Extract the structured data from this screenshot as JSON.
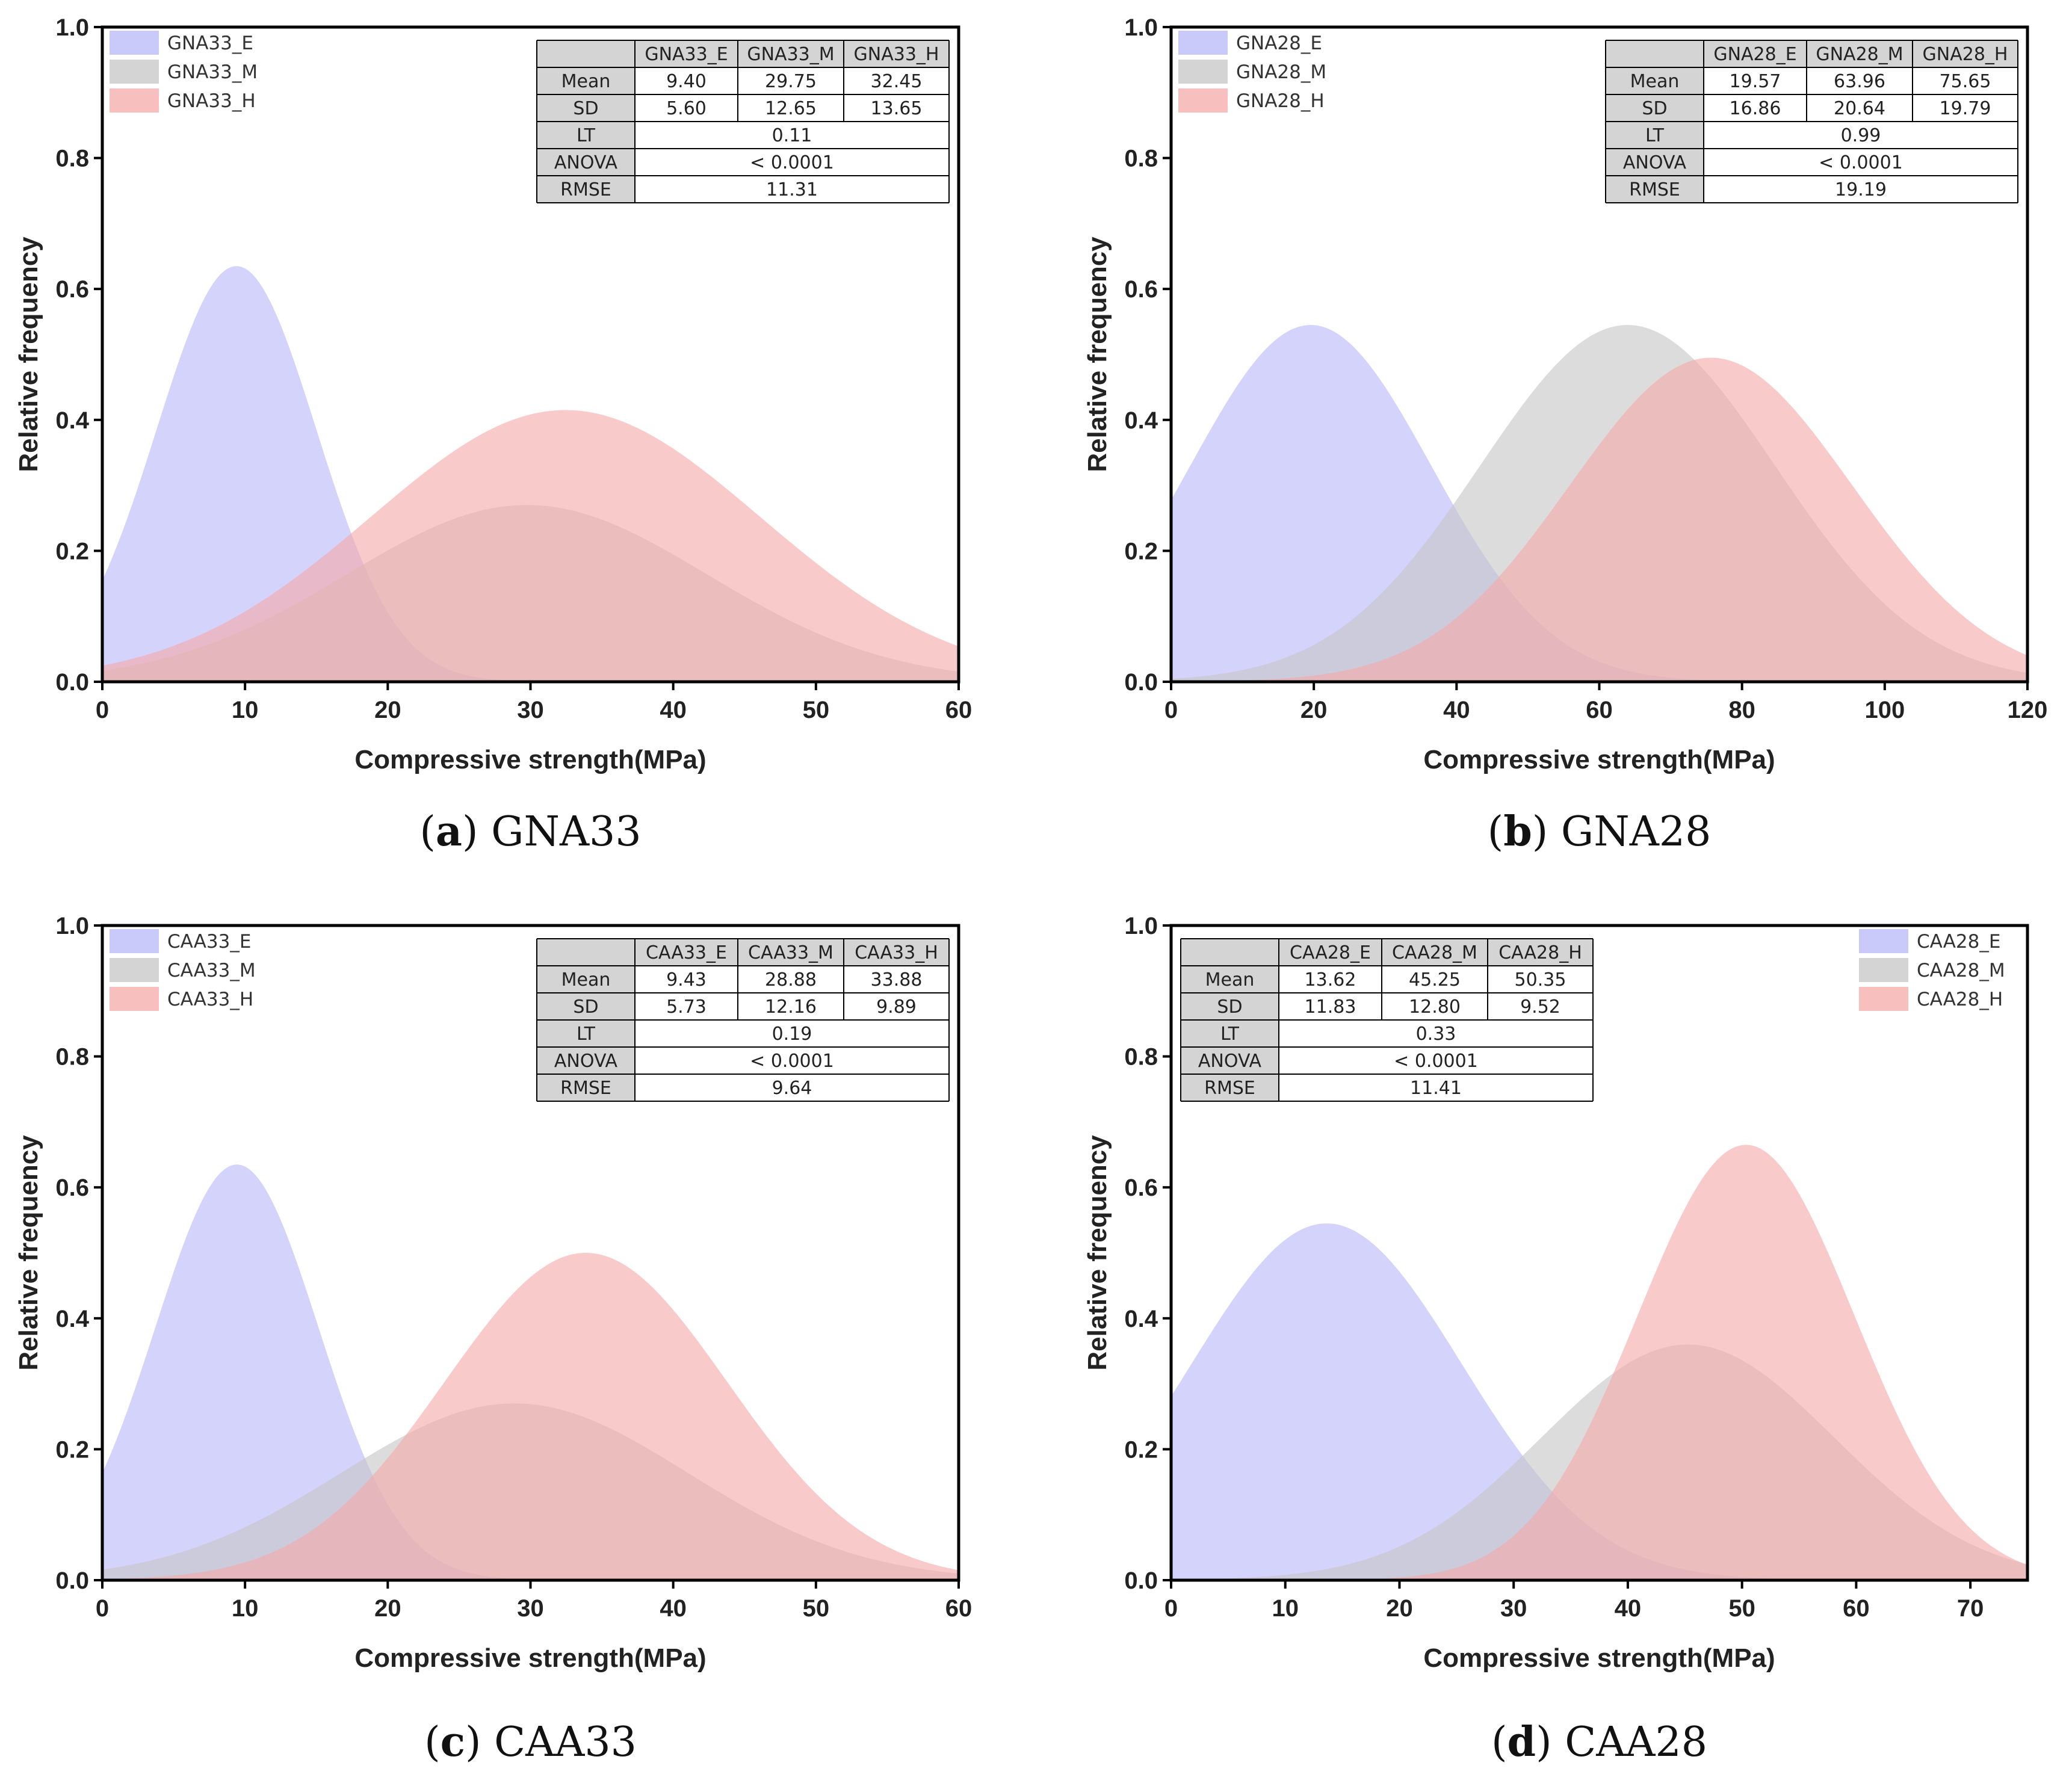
{
  "colors": {
    "E": "#b8b8f8",
    "M": "#c6c6c6",
    "H": "#f6aaaa"
  },
  "chart_data": [
    {
      "type": "area",
      "caption": {
        "letter": "a",
        "name": "GNA33"
      },
      "xlabel": "Compressive strength(MPa)",
      "ylabel": "Relative frequency",
      "xlim": [
        0,
        60
      ],
      "ylim": [
        0,
        1.0
      ],
      "xticks": [
        "0",
        "10",
        "20",
        "30",
        "40",
        "50",
        "60"
      ],
      "yticks": [
        "0.0",
        "0.2",
        "0.4",
        "0.6",
        "0.8",
        "1.0"
      ],
      "legend_position": "top-left",
      "table_position": "top-right",
      "series": [
        {
          "name": "GNA33_E",
          "key": "E",
          "mean": 9.4,
          "sd": 5.6,
          "peak": 0.635
        },
        {
          "name": "GNA33_M",
          "key": "M",
          "mean": 29.75,
          "sd": 12.65,
          "peak": 0.27
        },
        {
          "name": "GNA33_H",
          "key": "H",
          "mean": 32.45,
          "sd": 13.65,
          "peak": 0.415
        }
      ],
      "table": {
        "headers": [
          "GNA33_E",
          "GNA33_M",
          "GNA33_H"
        ],
        "mean": [
          "9.40",
          "29.75",
          "32.45"
        ],
        "sd": [
          "5.60",
          "12.65",
          "13.65"
        ],
        "row_labels": [
          "Mean",
          "SD",
          "LT",
          "ANOVA",
          "RMSE"
        ],
        "lt": "0.11",
        "anova": "< 0.0001",
        "rmse": "11.31"
      }
    },
    {
      "type": "area",
      "caption": {
        "letter": "b",
        "name": "GNA28"
      },
      "xlabel": "Compressive strength(MPa)",
      "ylabel": "Relative frequency",
      "xlim": [
        0,
        120
      ],
      "ylim": [
        0,
        1.0
      ],
      "xticks": [
        "0",
        "20",
        "40",
        "60",
        "80",
        "100",
        "120"
      ],
      "yticks": [
        "0.0",
        "0.2",
        "0.4",
        "0.6",
        "0.8",
        "1.0"
      ],
      "legend_position": "top-left",
      "table_position": "top-right",
      "series": [
        {
          "name": "GNA28_E",
          "key": "E",
          "mean": 19.57,
          "sd": 16.86,
          "peak": 0.545
        },
        {
          "name": "GNA28_M",
          "key": "M",
          "mean": 63.96,
          "sd": 20.64,
          "peak": 0.545
        },
        {
          "name": "GNA28_H",
          "key": "H",
          "mean": 75.65,
          "sd": 19.79,
          "peak": 0.495
        }
      ],
      "table": {
        "headers": [
          "GNA28_E",
          "GNA28_M",
          "GNA28_H"
        ],
        "mean": [
          "19.57",
          "63.96",
          "75.65"
        ],
        "sd": [
          "16.86",
          "20.64",
          "19.79"
        ],
        "row_labels": [
          "Mean",
          "SD",
          "LT",
          "ANOVA",
          "RMSE"
        ],
        "lt": "0.99",
        "anova": "< 0.0001",
        "rmse": "19.19"
      }
    },
    {
      "type": "area",
      "caption": {
        "letter": "c",
        "name": "CAA33"
      },
      "xlabel": "Compressive strength(MPa)",
      "ylabel": "Relative frequency",
      "xlim": [
        0,
        60
      ],
      "ylim": [
        0,
        1.0
      ],
      "xticks": [
        "0",
        "10",
        "20",
        "30",
        "40",
        "50",
        "60"
      ],
      "yticks": [
        "0.0",
        "0.2",
        "0.4",
        "0.6",
        "0.8",
        "1.0"
      ],
      "legend_position": "top-left",
      "table_position": "top-right",
      "series": [
        {
          "name": "CAA33_E",
          "key": "E",
          "mean": 9.43,
          "sd": 5.73,
          "peak": 0.635
        },
        {
          "name": "CAA33_M",
          "key": "M",
          "mean": 28.88,
          "sd": 12.16,
          "peak": 0.27
        },
        {
          "name": "CAA33_H",
          "key": "H",
          "mean": 33.88,
          "sd": 9.89,
          "peak": 0.5
        }
      ],
      "table": {
        "headers": [
          "CAA33_E",
          "CAA33_M",
          "CAA33_H"
        ],
        "mean": [
          "9.43",
          "28.88",
          "33.88"
        ],
        "sd": [
          "5.73",
          "12.16",
          "9.89"
        ],
        "row_labels": [
          "Mean",
          "SD",
          "LT",
          "ANOVA",
          "RMSE"
        ],
        "lt": "0.19",
        "anova": "< 0.0001",
        "rmse": "9.64"
      }
    },
    {
      "type": "area",
      "caption": {
        "letter": "d",
        "name": "CAA28"
      },
      "xlabel": "Compressive strength(MPa)",
      "ylabel": "Relative frequency",
      "xlim": [
        0,
        75
      ],
      "ylim": [
        0,
        1.0
      ],
      "xticks": [
        "0",
        "10",
        "20",
        "30",
        "40",
        "50",
        "60",
        "70"
      ],
      "yticks": [
        "0.0",
        "0.2",
        "0.4",
        "0.6",
        "0.8",
        "1.0"
      ],
      "legend_position": "top-right",
      "table_position": "top-left",
      "series": [
        {
          "name": "CAA28_E",
          "key": "E",
          "mean": 13.62,
          "sd": 11.83,
          "peak": 0.545
        },
        {
          "name": "CAA28_M",
          "key": "M",
          "mean": 45.25,
          "sd": 12.8,
          "peak": 0.36
        },
        {
          "name": "CAA28_H",
          "key": "H",
          "mean": 50.35,
          "sd": 9.52,
          "peak": 0.665
        }
      ],
      "table": {
        "headers": [
          "CAA28_E",
          "CAA28_M",
          "CAA28_H"
        ],
        "mean": [
          "13.62",
          "45.25",
          "50.35"
        ],
        "sd": [
          "11.83",
          "12.80",
          "9.52"
        ],
        "row_labels": [
          "Mean",
          "SD",
          "LT",
          "ANOVA",
          "RMSE"
        ],
        "lt": "0.33",
        "anova": "< 0.0001",
        "rmse": "11.41"
      }
    }
  ]
}
